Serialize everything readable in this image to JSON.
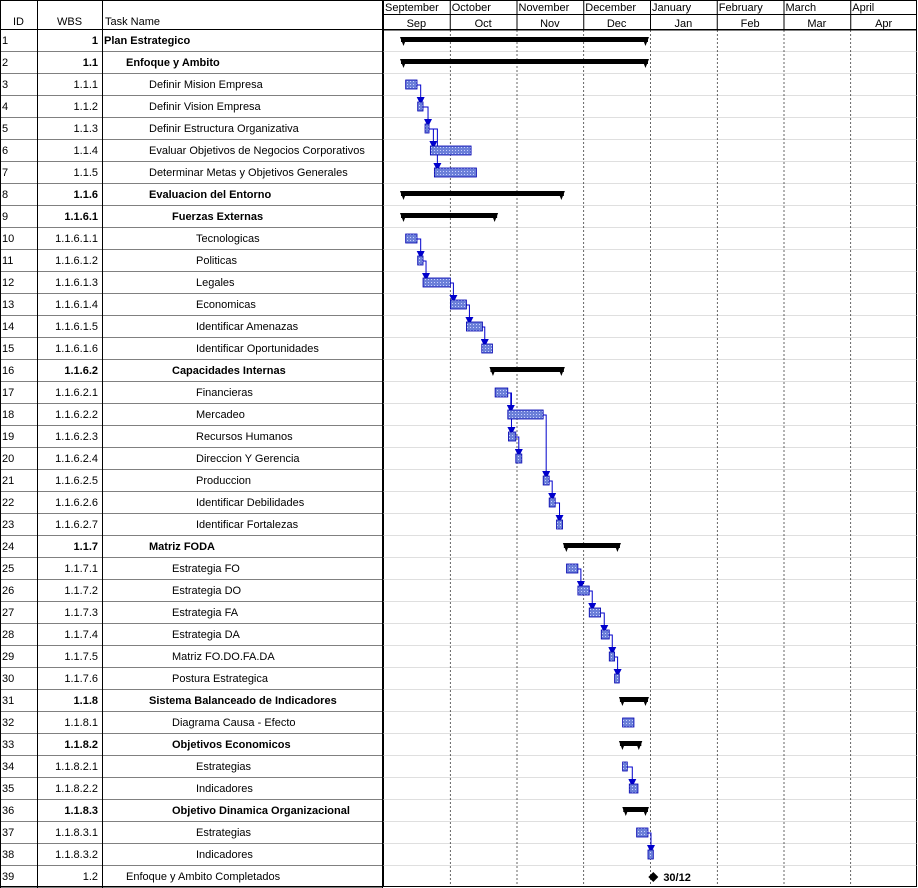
{
  "columns": {
    "id": "ID",
    "wbs": "WBS",
    "task_name": "Task Name"
  },
  "timescale": {
    "top": [
      "September",
      "October",
      "November",
      "December",
      "January",
      "February",
      "March",
      "April"
    ],
    "bottom": [
      "Sep",
      "Oct",
      "Nov",
      "Dec",
      "Jan",
      "Feb",
      "Mar",
      "Apr"
    ]
  },
  "tasks": [
    {
      "id": "1",
      "wbs": "1",
      "name": "Plan Estrategico",
      "level": 0,
      "summary": true,
      "start": 0.0,
      "end": 3.7
    },
    {
      "id": "2",
      "wbs": "1.1",
      "name": "Enfoque y Ambito",
      "level": 1,
      "summary": true,
      "start": 0.0,
      "end": 3.7
    },
    {
      "id": "3",
      "wbs": "1.1.1",
      "name": "Definir Mision Empresa",
      "level": 2,
      "summary": false,
      "start": 0.07,
      "end": 0.24
    },
    {
      "id": "4",
      "wbs": "1.1.2",
      "name": "Definir Vision Empresa",
      "level": 2,
      "summary": false,
      "start": 0.25,
      "end": 0.33
    },
    {
      "id": "5",
      "wbs": "1.1.3",
      "name": "Definir Estructura Organizativa",
      "level": 2,
      "summary": false,
      "start": 0.36,
      "end": 0.38
    },
    {
      "id": "6",
      "wbs": "1.1.4",
      "name": "Evaluar Objetivos de Negocios Corporativos",
      "level": 2,
      "summary": false,
      "start": 0.44,
      "end": 1.05
    },
    {
      "id": "7",
      "wbs": "1.1.5",
      "name": "Determinar Metas y Objetivos Generales",
      "level": 2,
      "summary": false,
      "start": 0.5,
      "end": 1.13
    },
    {
      "id": "8",
      "wbs": "1.1.6",
      "name": "Evaluacion del Entorno",
      "level": 2,
      "summary": true,
      "start": 0.0,
      "end": 2.44
    },
    {
      "id": "9",
      "wbs": "1.1.6.1",
      "name": "Fuerzas Externas",
      "level": 3,
      "summary": true,
      "start": 0.0,
      "end": 1.44
    },
    {
      "id": "10",
      "wbs": "1.1.6.1.1",
      "name": "Tecnologicas",
      "level": 4,
      "summary": false,
      "start": 0.07,
      "end": 0.24
    },
    {
      "id": "11",
      "wbs": "1.1.6.1.2",
      "name": "Politicas",
      "level": 4,
      "summary": false,
      "start": 0.25,
      "end": 0.33
    },
    {
      "id": "12",
      "wbs": "1.1.6.1.3",
      "name": "Legales",
      "level": 4,
      "summary": false,
      "start": 0.33,
      "end": 0.74
    },
    {
      "id": "13",
      "wbs": "1.1.6.1.4",
      "name": "Economicas",
      "level": 4,
      "summary": false,
      "start": 0.74,
      "end": 0.98
    },
    {
      "id": "14",
      "wbs": "1.1.6.1.5",
      "name": "Identificar Amenazas",
      "level": 4,
      "summary": false,
      "start": 0.98,
      "end": 1.22
    },
    {
      "id": "15",
      "wbs": "1.1.6.1.6",
      "name": "Identificar Oportunidades",
      "level": 4,
      "summary": false,
      "start": 1.21,
      "end": 1.37
    },
    {
      "id": "16",
      "wbs": "1.1.6.2",
      "name": "Capacidades Internas",
      "level": 3,
      "summary": true,
      "start": 1.34,
      "end": 2.44
    },
    {
      "id": "17",
      "wbs": "1.1.6.2.1",
      "name": "Financieras",
      "level": 4,
      "summary": false,
      "start": 1.41,
      "end": 1.6
    },
    {
      "id": "18",
      "wbs": "1.1.6.2.2",
      "name": "Mercadeo",
      "level": 4,
      "summary": false,
      "start": 1.6,
      "end": 2.13
    },
    {
      "id": "19",
      "wbs": "1.1.6.2.3",
      "name": "Recursos Humanos",
      "level": 4,
      "summary": false,
      "start": 1.61,
      "end": 1.72
    },
    {
      "id": "20",
      "wbs": "1.1.6.2.4",
      "name": "Direccion Y Gerencia",
      "level": 4,
      "summary": false,
      "start": 1.72,
      "end": 1.81
    },
    {
      "id": "21",
      "wbs": "1.1.6.2.5",
      "name": "Produccion",
      "level": 4,
      "summary": false,
      "start": 2.13,
      "end": 2.22
    },
    {
      "id": "22",
      "wbs": "1.1.6.2.6",
      "name": "Identificar Debilidades",
      "level": 4,
      "summary": false,
      "start": 2.22,
      "end": 2.31
    },
    {
      "id": "23",
      "wbs": "1.1.6.2.7",
      "name": "Identificar Fortalezas",
      "level": 4,
      "summary": false,
      "start": 2.33,
      "end": 2.42
    },
    {
      "id": "24",
      "wbs": "1.1.7",
      "name": "Matriz FODA",
      "level": 2,
      "summary": true,
      "start": 2.44,
      "end": 3.28
    },
    {
      "id": "25",
      "wbs": "1.1.7.1",
      "name": "Estrategia FO",
      "level": 3,
      "summary": false,
      "start": 2.48,
      "end": 2.65
    },
    {
      "id": "26",
      "wbs": "1.1.7.2",
      "name": "Estrategia DO",
      "level": 3,
      "summary": false,
      "start": 2.65,
      "end": 2.82
    },
    {
      "id": "27",
      "wbs": "1.1.7.3",
      "name": "Estrategia FA",
      "level": 3,
      "summary": false,
      "start": 2.82,
      "end": 2.99
    },
    {
      "id": "28",
      "wbs": "1.1.7.4",
      "name": "Estrategia DA",
      "level": 3,
      "summary": false,
      "start": 3.0,
      "end": 3.12
    },
    {
      "id": "29",
      "wbs": "1.1.7.5",
      "name": "Matriz FO.DO.FA.DA",
      "level": 3,
      "summary": false,
      "start": 3.12,
      "end": 3.2
    },
    {
      "id": "30",
      "wbs": "1.1.7.6",
      "name": "Postura Estrategica",
      "level": 3,
      "summary": false,
      "start": 3.2,
      "end": 3.27
    },
    {
      "id": "31",
      "wbs": "1.1.8",
      "name": "Sistema Balanceado de Indicadores",
      "level": 2,
      "summary": true,
      "start": 3.28,
      "end": 3.7
    },
    {
      "id": "32",
      "wbs": "1.1.8.1",
      "name": "Diagrama Causa - Efecto",
      "level": 3,
      "summary": false,
      "start": 3.32,
      "end": 3.49
    },
    {
      "id": "33",
      "wbs": "1.1.8.2",
      "name": "Objetivos Economicos",
      "level": 3,
      "summary": true,
      "start": 3.28,
      "end": 3.6
    },
    {
      "id": "34",
      "wbs": "1.1.8.2.1",
      "name": "Estrategias",
      "level": 4,
      "summary": false,
      "start": 3.32,
      "end": 3.39
    },
    {
      "id": "35",
      "wbs": "1.1.8.2.2",
      "name": "Indicadores",
      "level": 4,
      "summary": false,
      "start": 3.42,
      "end": 3.55
    },
    {
      "id": "36",
      "wbs": "1.1.8.3",
      "name": "Objetivo Dinamica Organizacional",
      "level": 3,
      "summary": true,
      "start": 3.33,
      "end": 3.7
    },
    {
      "id": "37",
      "wbs": "1.1.8.3.1",
      "name": "Estrategias",
      "level": 4,
      "summary": false,
      "start": 3.53,
      "end": 3.7
    },
    {
      "id": "38",
      "wbs": "1.1.8.3.2",
      "name": "Indicadores",
      "level": 4,
      "summary": false,
      "start": 3.7,
      "end": 3.78
    },
    {
      "id": "39",
      "wbs": "1.2",
      "name": "Enfoque y Ambito Completados",
      "level": 1,
      "summary": false,
      "milestone": true,
      "start": 3.78,
      "end": 3.78,
      "milestone_label": "30/12"
    }
  ],
  "links": [
    [
      3,
      4
    ],
    [
      4,
      5
    ],
    [
      5,
      6
    ],
    [
      5,
      7
    ],
    [
      10,
      11
    ],
    [
      11,
      12
    ],
    [
      12,
      13
    ],
    [
      13,
      14
    ],
    [
      14,
      15
    ],
    [
      17,
      18
    ],
    [
      17,
      19
    ],
    [
      19,
      20
    ],
    [
      18,
      21
    ],
    [
      21,
      22
    ],
    [
      22,
      23
    ],
    [
      25,
      26
    ],
    [
      26,
      27
    ],
    [
      27,
      28
    ],
    [
      28,
      29
    ],
    [
      29,
      30
    ],
    [
      34,
      35
    ],
    [
      37,
      38
    ]
  ],
  "colors": {
    "task_bar": "#6b7fd8",
    "task_border": "#0000b0",
    "link": "#0000cc",
    "summary": "#000000"
  }
}
